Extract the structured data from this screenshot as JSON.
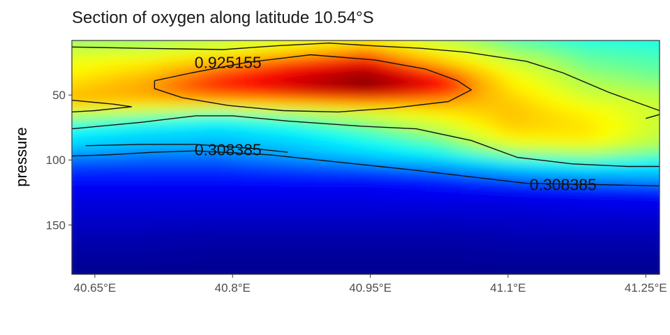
{
  "chart_data": {
    "type": "heatmap",
    "subtype": "filled-contour-section",
    "title": "Section of oxygen along latitude 10.54°S",
    "xlabel": "",
    "ylabel": "pressure",
    "x_axis": {
      "range": [
        40.625,
        41.265
      ],
      "ticks": [
        40.65,
        40.8,
        40.95,
        41.1,
        41.25
      ],
      "tick_labels": [
        "40.65°E",
        "40.8°E",
        "40.95°E",
        "41.1°E",
        "41.25°E"
      ]
    },
    "y_axis": {
      "range": [
        188,
        8
      ],
      "reversed": true,
      "ticks": [
        50,
        100,
        150
      ],
      "tick_labels": [
        "50",
        "100",
        "150"
      ]
    },
    "colormap": [
      "#00008f",
      "#0000ff",
      "#00a8ff",
      "#00ffff",
      "#a8ff57",
      "#ffff00",
      "#ffa800",
      "#ff0000",
      "#800000"
    ],
    "field": {
      "x": [
        40.625,
        40.705,
        40.785,
        40.865,
        40.945,
        41.025,
        41.105,
        41.185,
        41.265
      ],
      "y": [
        8,
        15,
        25,
        35,
        45,
        55,
        65,
        75,
        85,
        95,
        105,
        115,
        125,
        140,
        160,
        188
      ],
      "values": [
        [
          0.55,
          0.55,
          0.6,
          0.65,
          0.7,
          0.6,
          0.5,
          0.45,
          0.45
        ],
        [
          0.62,
          0.62,
          0.66,
          0.75,
          0.85,
          0.68,
          0.55,
          0.5,
          0.48
        ],
        [
          0.68,
          0.72,
          0.82,
          0.92,
          0.97,
          0.8,
          0.62,
          0.52,
          0.5
        ],
        [
          0.72,
          0.8,
          0.92,
          1.0,
          1.08,
          0.95,
          0.7,
          0.56,
          0.52
        ],
        [
          0.78,
          0.85,
          0.95,
          1.02,
          1.1,
          0.98,
          0.74,
          0.6,
          0.56
        ],
        [
          0.82,
          0.8,
          0.82,
          0.85,
          0.88,
          0.85,
          0.78,
          0.66,
          0.62
        ],
        [
          0.6,
          0.55,
          0.5,
          0.55,
          0.62,
          0.72,
          0.8,
          0.72,
          0.62
        ],
        [
          0.45,
          0.42,
          0.4,
          0.45,
          0.52,
          0.62,
          0.78,
          0.75,
          0.62
        ],
        [
          0.4,
          0.36,
          0.34,
          0.38,
          0.45,
          0.52,
          0.7,
          0.72,
          0.6
        ],
        [
          0.3,
          0.28,
          0.28,
          0.32,
          0.38,
          0.45,
          0.55,
          0.58,
          0.52
        ],
        [
          0.22,
          0.22,
          0.22,
          0.24,
          0.26,
          0.3,
          0.38,
          0.42,
          0.4
        ],
        [
          0.18,
          0.18,
          0.18,
          0.18,
          0.18,
          0.2,
          0.24,
          0.28,
          0.3
        ],
        [
          0.15,
          0.15,
          0.15,
          0.15,
          0.15,
          0.16,
          0.16,
          0.17,
          0.18
        ],
        [
          0.12,
          0.12,
          0.12,
          0.12,
          0.12,
          0.12,
          0.12,
          0.13,
          0.13
        ],
        [
          0.08,
          0.08,
          0.07,
          0.07,
          0.07,
          0.07,
          0.08,
          0.08,
          0.08
        ],
        [
          0.04,
          0.04,
          0.04,
          0.04,
          0.04,
          0.04,
          0.04,
          0.04,
          0.04
        ]
      ],
      "vmin": 0.04,
      "vmax": 1.1
    },
    "contours": [
      {
        "level": 0.925155,
        "label": "0.925155",
        "label_at": [
          40.795,
          25
        ],
        "path": [
          [
            40.715,
            39
          ],
          [
            40.755,
            33
          ],
          [
            40.815,
            25
          ],
          [
            40.885,
            19
          ],
          [
            40.955,
            23
          ],
          [
            41.01,
            30
          ],
          [
            41.045,
            39
          ],
          [
            41.06,
            46
          ],
          [
            41.035,
            55
          ],
          [
            40.975,
            60
          ],
          [
            40.915,
            63
          ],
          [
            40.855,
            62
          ],
          [
            40.795,
            58
          ],
          [
            40.745,
            52
          ],
          [
            40.715,
            45
          ],
          [
            40.715,
            39
          ]
        ]
      },
      {
        "level": 0.308385,
        "label": "0.308385",
        "label_at": [
          40.795,
          92
        ],
        "path": [
          [
            40.625,
            97
          ],
          [
            40.665,
            96
          ],
          [
            40.715,
            94
          ],
          [
            40.76,
            93
          ],
          [
            40.84,
            96
          ],
          [
            40.92,
            102
          ],
          [
            40.96,
            105
          ],
          [
            41.0,
            108
          ],
          [
            41.06,
            113
          ],
          [
            41.12,
            118
          ],
          [
            41.2,
            119
          ],
          [
            41.265,
            120
          ]
        ]
      },
      {
        "level": 0.308385,
        "label": "0.308385",
        "label_at": [
          41.16,
          119
        ],
        "path": [
          [
            40.625,
            76
          ],
          [
            40.7,
            71
          ],
          [
            40.76,
            66
          ],
          [
            40.8,
            66
          ],
          [
            40.86,
            70
          ],
          [
            40.94,
            74
          ],
          [
            41.0,
            76
          ],
          [
            41.06,
            85
          ],
          [
            41.11,
            98
          ],
          [
            41.17,
            103
          ],
          [
            41.23,
            105
          ],
          [
            41.265,
            105
          ]
        ]
      },
      {
        "level": 0.308385,
        "label": "",
        "path": [
          [
            40.64,
            89
          ],
          [
            40.7,
            88
          ],
          [
            40.76,
            88
          ],
          [
            40.82,
            91
          ],
          [
            40.86,
            94
          ]
        ]
      },
      {
        "level": 0.925155,
        "label": "",
        "path": [
          [
            40.625,
            54
          ],
          [
            40.67,
            57
          ],
          [
            40.69,
            59
          ],
          [
            40.65,
            62
          ],
          [
            40.625,
            63
          ]
        ]
      },
      {
        "level": 0.55,
        "label": "",
        "path": [
          [
            40.625,
            13
          ],
          [
            40.7,
            14
          ],
          [
            40.79,
            15
          ],
          [
            40.85,
            12
          ],
          [
            40.905,
            10
          ],
          [
            40.95,
            12
          ],
          [
            41.005,
            14
          ],
          [
            41.055,
            17
          ],
          [
            41.12,
            24
          ],
          [
            41.16,
            33
          ],
          [
            41.21,
            48
          ],
          [
            41.265,
            62
          ]
        ]
      },
      {
        "level": 0.55,
        "label": "",
        "path": [
          [
            41.25,
            68
          ],
          [
            41.265,
            65
          ]
        ]
      }
    ]
  }
}
